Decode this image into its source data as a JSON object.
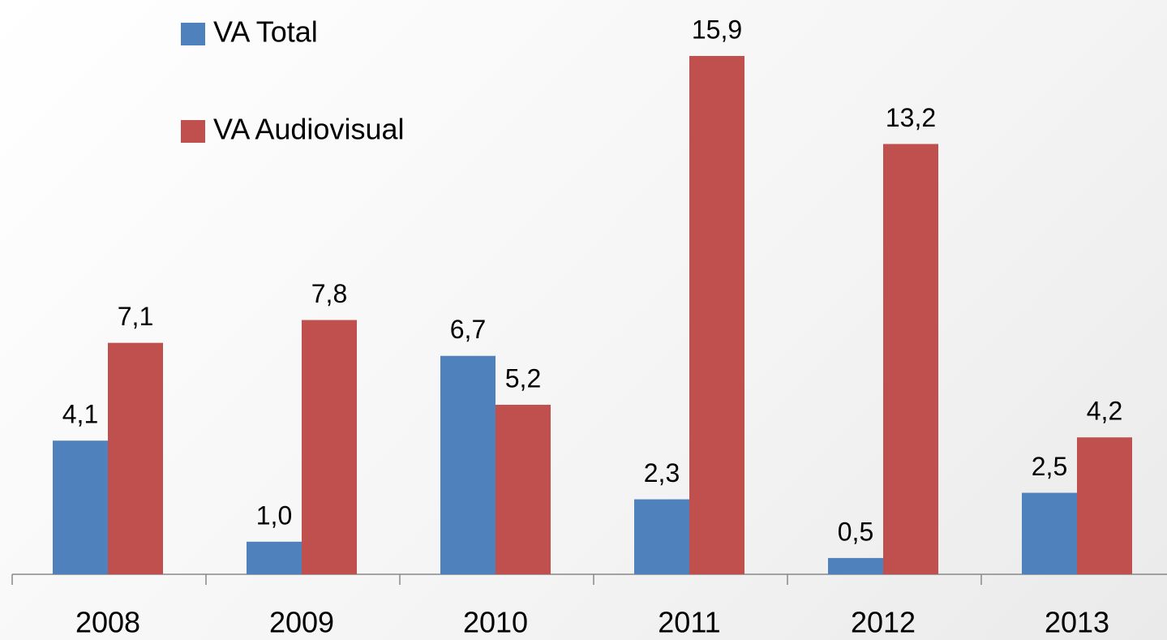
{
  "chart_data": {
    "type": "bar",
    "categories": [
      "2008",
      "2009",
      "2010",
      "2011",
      "2012",
      "2013"
    ],
    "series": [
      {
        "name": "VA Total",
        "color": "#4f81bd",
        "values": [
          4.1,
          1.0,
          6.7,
          2.3,
          0.5,
          2.5
        ],
        "value_labels": [
          "4,1",
          "1,0",
          "6,7",
          "2,3",
          "0,5",
          "2,5"
        ]
      },
      {
        "name": "VA Audiovisual",
        "color": "#c0504d",
        "values": [
          7.1,
          7.8,
          5.2,
          15.9,
          13.2,
          4.2
        ],
        "value_labels": [
          "7,1",
          "7,8",
          "5,2",
          "15,9",
          "13,2",
          "4,2"
        ]
      }
    ],
    "legend": "top-left"
  }
}
